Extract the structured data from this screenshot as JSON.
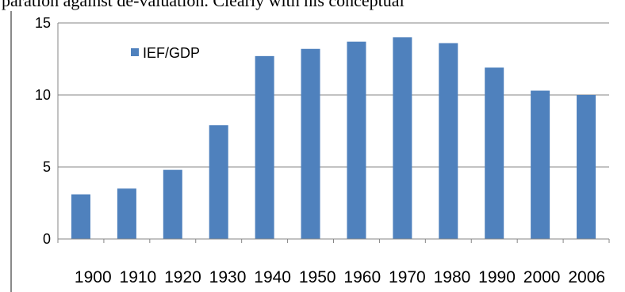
{
  "header_text": "paration against de-valuation. Clearly with his conceptual",
  "chart_data": {
    "type": "bar",
    "categories": [
      "1900",
      "1910",
      "1920",
      "1930",
      "1940",
      "1950",
      "1960",
      "1970",
      "1980",
      "1990",
      "2000",
      "2006"
    ],
    "series": [
      {
        "name": "IEF/GDP",
        "values": [
          3.1,
          3.5,
          4.8,
          7.9,
          12.7,
          13.2,
          13.7,
          14.0,
          13.6,
          11.9,
          10.3,
          10.0
        ]
      }
    ],
    "ylim": [
      0,
      15
    ],
    "yticks": [
      0,
      5,
      10,
      15
    ],
    "grid": true,
    "legend_position": "top-left",
    "bar_color": "#4f81bd",
    "xlabel": "",
    "ylabel": "",
    "title": ""
  }
}
